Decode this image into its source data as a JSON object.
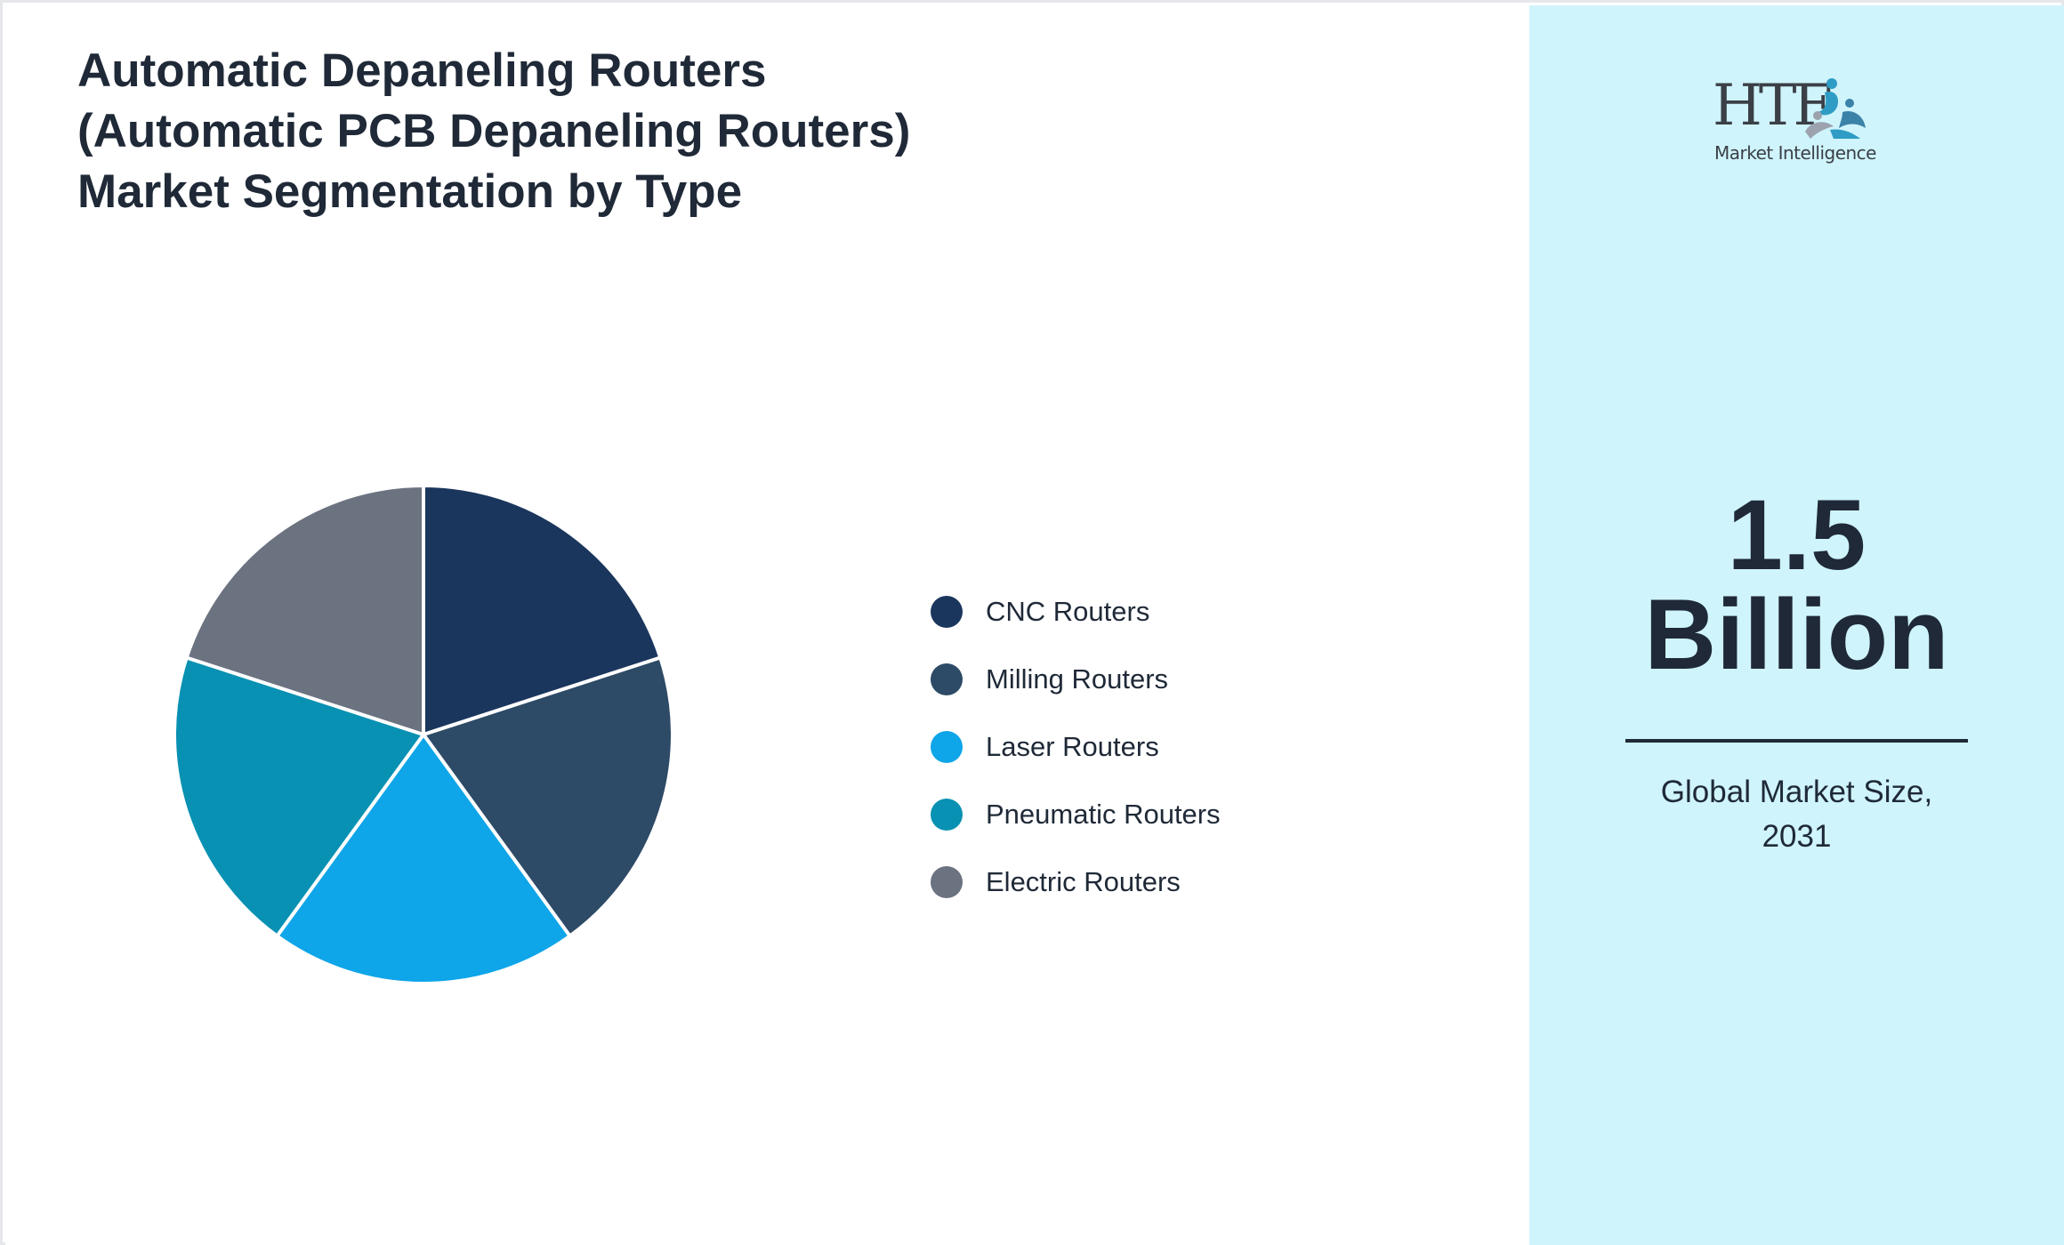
{
  "title": "Automatic Depaneling Routers (Automatic PCB Depaneling Routers) Market Segmentation by Type",
  "chart_data": {
    "type": "pie",
    "title": "Automatic Depaneling Routers (Automatic PCB Depaneling Routers) Market Segmentation by Type",
    "categories": [
      "CNC Routers",
      "Milling Routers",
      "Laser Routers",
      "Pneumatic Routers",
      "Electric Routers"
    ],
    "values": [
      20,
      20,
      20,
      20,
      20
    ],
    "colors": [
      "#1b365d",
      "#2d4a66",
      "#0ea5e9",
      "#0891b2",
      "#6b7280"
    ],
    "legend_position": "right",
    "start_angle": "top",
    "direction": "clockwise"
  },
  "summary": {
    "value_line1": "1.5",
    "value_line2": "Billion",
    "caption_line1": "Global Market Size,",
    "caption_line2": "2031"
  },
  "logo": {
    "text": "HTF",
    "subtext": "Market Intelligence",
    "mark_colors": [
      "#2e9cc4",
      "#9ca3af",
      "#3b82a8"
    ]
  },
  "colors": {
    "right_panel_bg": "#cff4fc",
    "text": "#1f2937",
    "slice_border": "#ffffff"
  }
}
